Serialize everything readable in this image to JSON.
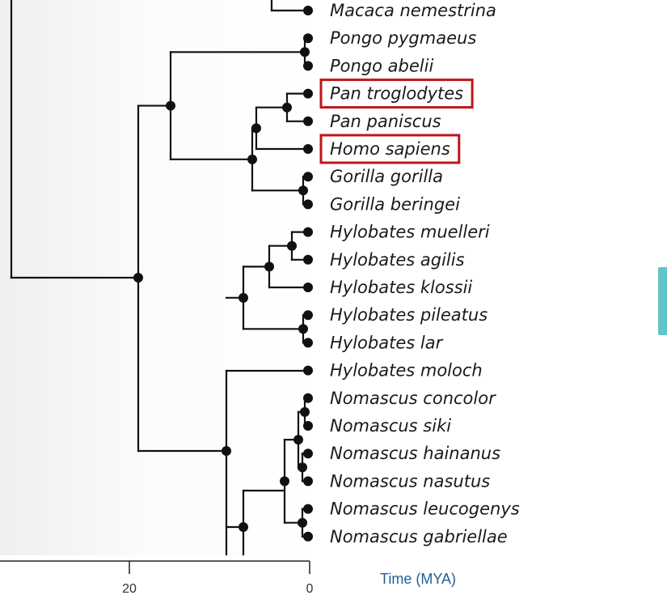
{
  "tree": {
    "leaves": [
      {
        "id": "macaca_nemestrina",
        "label": "Macaca nemestrina",
        "highlighted": false
      },
      {
        "id": "pongo_pygmaeus",
        "label": "Pongo pygmaeus",
        "highlighted": false
      },
      {
        "id": "pongo_abelii",
        "label": "Pongo abelii",
        "highlighted": false
      },
      {
        "id": "pan_troglodytes",
        "label": "Pan troglodytes",
        "highlighted": true
      },
      {
        "id": "pan_paniscus",
        "label": "Pan paniscus",
        "highlighted": false
      },
      {
        "id": "homo_sapiens",
        "label": "Homo sapiens",
        "highlighted": true
      },
      {
        "id": "gorilla_gorilla",
        "label": "Gorilla gorilla",
        "highlighted": false
      },
      {
        "id": "gorilla_beringei",
        "label": "Gorilla beringei",
        "highlighted": false
      },
      {
        "id": "hylobates_muelleri",
        "label": "Hylobates muelleri",
        "highlighted": false
      },
      {
        "id": "hylobates_agilis",
        "label": "Hylobates agilis",
        "highlighted": false
      },
      {
        "id": "hylobates_klossii",
        "label": "Hylobates klossii",
        "highlighted": false
      },
      {
        "id": "hylobates_pileatus",
        "label": "Hylobates pileatus",
        "highlighted": false
      },
      {
        "id": "hylobates_lar",
        "label": "Hylobates lar",
        "highlighted": false
      },
      {
        "id": "hylobates_moloch",
        "label": "Hylobates moloch",
        "highlighted": false
      },
      {
        "id": "nomascus_concolor",
        "label": "Nomascus concolor",
        "highlighted": false
      },
      {
        "id": "nomascus_siki",
        "label": "Nomascus siki",
        "highlighted": false
      },
      {
        "id": "nomascus_hainanus",
        "label": "Nomascus hainanus",
        "highlighted": false
      },
      {
        "id": "nomascus_nasutus",
        "label": "Nomascus nasutus",
        "highlighted": false
      },
      {
        "id": "nomascus_leucogenys",
        "label": "Nomascus leucogenys",
        "highlighted": false
      },
      {
        "id": "nomascus_gabriellae",
        "label": "Nomascus gabriellae",
        "highlighted": false
      }
    ],
    "axis": {
      "title": "Time (MYA)",
      "ticks": [
        {
          "value": 20,
          "label": "20"
        },
        {
          "value": 0,
          "label": "0"
        }
      ]
    }
  },
  "colors": {
    "branch": "#111111",
    "highlight": "#c0151b",
    "axis_title": "#1f5f9c",
    "scroll_thumb": "#62c3c9"
  }
}
